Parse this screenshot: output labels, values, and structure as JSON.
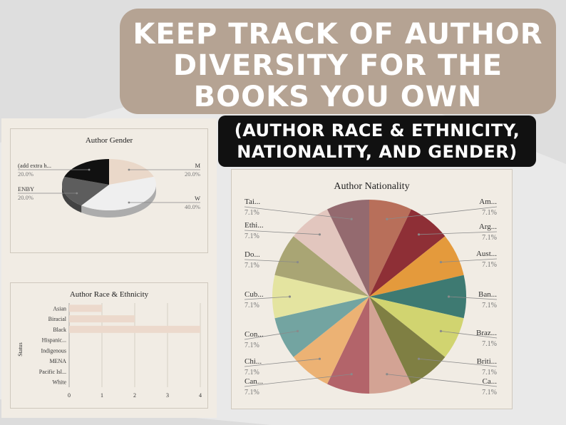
{
  "banner": {
    "line1": "KEEP TRACK OF AUTHOR",
    "line2": "DIVERSITY FOR THE",
    "line3": "BOOKS YOU OWN"
  },
  "subbanner": {
    "line1": "(AUTHOR RACE & ETHNICITY,",
    "line2": "NATIONALITY, AND GENDER)"
  },
  "colors": {
    "background": "#e9e9e9",
    "panel": "#f1ece4",
    "banner": "#b5a393",
    "subbanner": "#111111",
    "bar": "#ecd9cc"
  },
  "chart_data": [
    {
      "type": "pie",
      "title": "Author Gender",
      "slices": [
        {
          "label": "M",
          "pct_label": "20.0%",
          "value": 20,
          "color": "#ead8c9"
        },
        {
          "label": "W",
          "pct_label": "40.0%",
          "value": 40,
          "color": "#efefef"
        },
        {
          "label": "ENBY",
          "pct_label": "20.0%",
          "value": 20,
          "color": "#5d5d5d"
        },
        {
          "label": "(add extra h...",
          "pct_label": "20.0%",
          "value": 20,
          "color": "#111111"
        }
      ]
    },
    {
      "type": "bar",
      "orientation": "horizontal",
      "title": "Author Race & Ethnicity",
      "ylabel": "Status",
      "categories": [
        "Asian",
        "Biracial",
        "Black",
        "Hispanic...",
        "Indigenous",
        "MENA",
        "Pacific Isl...",
        "White"
      ],
      "values": [
        1,
        2,
        4,
        0,
        0,
        0,
        0,
        0
      ],
      "xlim": [
        0,
        4
      ],
      "xticks": [
        "0",
        "1",
        "2",
        "3",
        "4"
      ],
      "grid": true
    },
    {
      "type": "pie",
      "title": "Author Nationality",
      "slices": [
        {
          "label": "Am...",
          "pct_label": "7.1%",
          "value": 7.1,
          "color": "#b86f5a"
        },
        {
          "label": "Arg...",
          "pct_label": "7.1%",
          "value": 7.1,
          "color": "#8e2f36"
        },
        {
          "label": "Aust...",
          "pct_label": "7.1%",
          "value": 7.1,
          "color": "#e49a3c"
        },
        {
          "label": "Ban...",
          "pct_label": "7.1%",
          "value": 7.1,
          "color": "#3e7a72"
        },
        {
          "label": "Braz...",
          "pct_label": "7.1%",
          "value": 7.1,
          "color": "#d1d470"
        },
        {
          "label": "Briti...",
          "pct_label": "7.1%",
          "value": 7.1,
          "color": "#7f7f43"
        },
        {
          "label": "Ca...",
          "pct_label": "7.1%",
          "value": 7.1,
          "color": "#d3a394"
        },
        {
          "label": "Can...",
          "pct_label": "7.1%",
          "value": 7.1,
          "color": "#b3646a"
        },
        {
          "label": "Chi...",
          "pct_label": "7.1%",
          "value": 7.1,
          "color": "#ecb274"
        },
        {
          "label": "Con...",
          "pct_label": "7.1%",
          "value": 7.1,
          "color": "#73a4a1"
        },
        {
          "label": "Cub...",
          "pct_label": "7.1%",
          "value": 7.1,
          "color": "#e4e4a0"
        },
        {
          "label": "Do...",
          "pct_label": "7.1%",
          "value": 7.1,
          "color": "#a9a574"
        },
        {
          "label": "Ethi...",
          "pct_label": "7.1%",
          "value": 7.1,
          "color": "#e2c6be"
        },
        {
          "label": "Tai...",
          "pct_label": "7.1%",
          "value": 7.1,
          "color": "#946a6f"
        }
      ]
    }
  ]
}
